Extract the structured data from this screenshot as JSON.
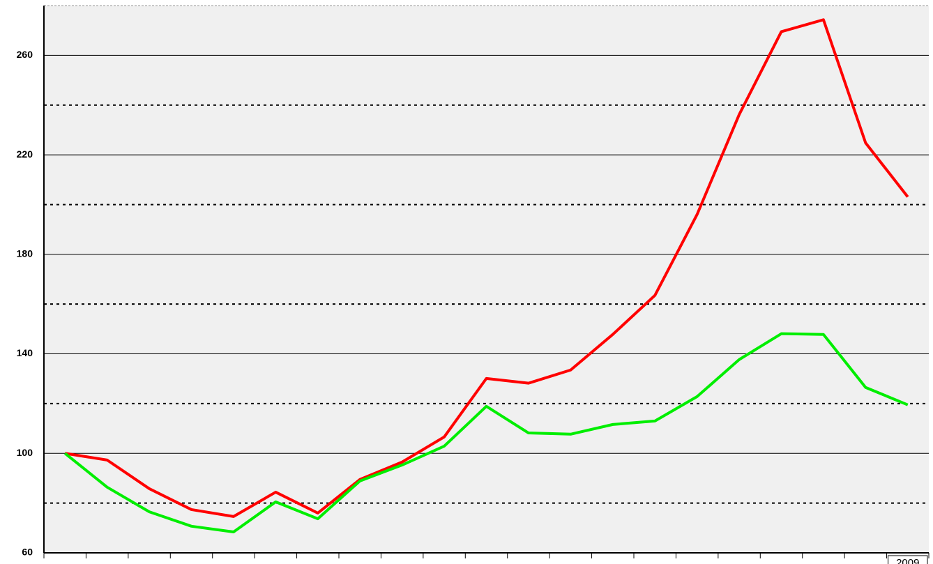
{
  "chart_data": {
    "type": "line",
    "categories": [
      null,
      null,
      null,
      null,
      null,
      null,
      null,
      null,
      null,
      null,
      null,
      null,
      null,
      null,
      null,
      null,
      null,
      null,
      null,
      null,
      "2009"
    ],
    "series": [
      {
        "color": "#ff0000",
        "values": [
          100,
          97.3,
          85.8,
          77.4,
          74.6,
          84.4,
          76,
          89.5,
          96.5,
          106.6,
          130.1,
          128.2,
          133.5,
          147.8,
          163.5,
          196,
          236.2,
          269.5,
          274.3,
          224.8,
          203.1
        ]
      },
      {
        "color": "#00ee00",
        "values": [
          100,
          86.4,
          76.5,
          70.7,
          68.4,
          80.5,
          73.7,
          88.9,
          95.3,
          102.9,
          118.9,
          108.2,
          107.7,
          111.6,
          113,
          122.8,
          137.7,
          148.1,
          147.8,
          126.5,
          119.5
        ]
      }
    ],
    "ylim": [
      60,
      280
    ],
    "yticks": [
      60,
      100,
      140,
      180,
      220,
      260
    ],
    "minor_yticks": [
      80,
      120,
      160,
      200,
      240
    ],
    "grid": true
  }
}
